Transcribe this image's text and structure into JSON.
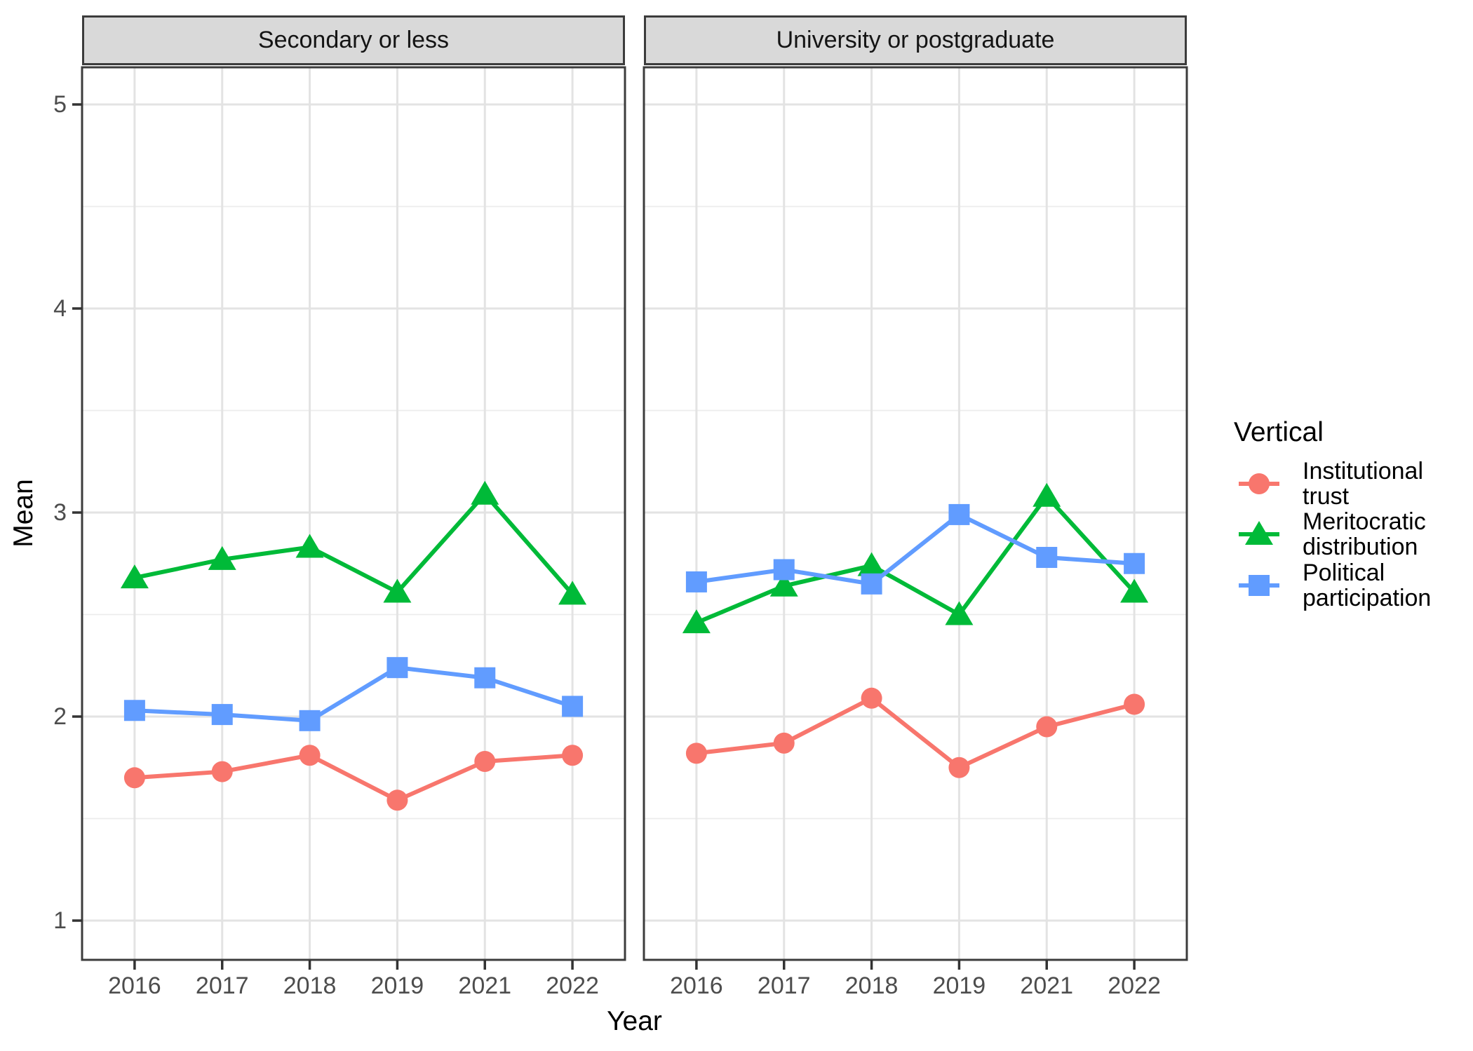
{
  "chart_data": {
    "type": "line",
    "title": "",
    "xlabel": "Year",
    "ylabel": "Mean",
    "facets": [
      "Secondary or less",
      "University or postgraduate"
    ],
    "x_categories": [
      "2016",
      "2017",
      "2018",
      "2019",
      "2021",
      "2022"
    ],
    "y_ticks": [
      5,
      4,
      3,
      2,
      1
    ],
    "ylim": [
      0.8,
      5.2
    ],
    "grid": {
      "major_y": [
        1,
        2,
        3,
        4,
        5
      ],
      "minor_y": [
        1.5,
        2.5,
        3.5,
        4.5
      ],
      "vertical_major": "one line per year category",
      "gridline_major_color": "#E3E3E3",
      "gridline_minor_color": "#ECECEC"
    },
    "panel": {
      "background": "#FFFFFF",
      "border_color": "#3C3C3C",
      "strip_fill": "#D9D9D9"
    },
    "legend": {
      "title": "Vertical",
      "position": "right",
      "items": [
        {
          "label": "Institutional\ntrust"
        },
        {
          "label": "Meritocratic\ndistribution"
        },
        {
          "label": "Political\nparticipation"
        }
      ]
    },
    "series": [
      {
        "name": "Institutional trust",
        "marker": "circle",
        "color": "#F8766D",
        "values": {
          "Secondary or less": [
            1.7,
            1.73,
            1.81,
            1.59,
            1.78,
            1.81
          ],
          "University or postgraduate": [
            1.82,
            1.87,
            2.09,
            1.75,
            1.95,
            2.06
          ]
        }
      },
      {
        "name": "Meritocratic distribution",
        "marker": "triangle",
        "color": "#00BA38",
        "values": {
          "Secondary or less": [
            2.68,
            2.77,
            2.83,
            2.61,
            3.09,
            2.6
          ],
          "University or postgraduate": [
            2.46,
            2.64,
            2.74,
            2.5,
            3.08,
            2.61
          ]
        }
      },
      {
        "name": "Political participation",
        "marker": "square",
        "color": "#619CFF",
        "values": {
          "Secondary or less": [
            2.03,
            2.01,
            1.98,
            2.24,
            2.19,
            2.05
          ],
          "University or postgraduate": [
            2.66,
            2.72,
            2.65,
            2.99,
            2.78,
            2.75
          ]
        }
      }
    ]
  }
}
